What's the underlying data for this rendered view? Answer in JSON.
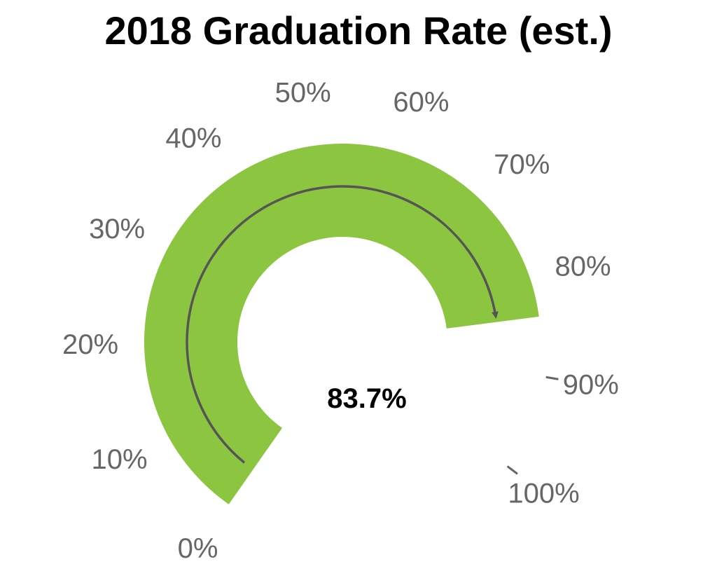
{
  "title": "2018 Graduation Rate (est.)",
  "chart_data": {
    "type": "gauge",
    "title": "2018 Graduation Rate (est.)",
    "value": 83.7,
    "value_label": "83.7%",
    "range": [
      0,
      100
    ],
    "tick_values": [
      0,
      10,
      20,
      30,
      40,
      50,
      60,
      70,
      80,
      90,
      100
    ],
    "tick_labels": [
      "0%",
      "10%",
      "20%",
      "30%",
      "40%",
      "50%",
      "60%",
      "70%",
      "80%",
      "90%",
      "100%"
    ],
    "colors": {
      "fill": "#8cc540",
      "text": "#666666",
      "arrow": "#555555",
      "value": "#000000"
    }
  }
}
